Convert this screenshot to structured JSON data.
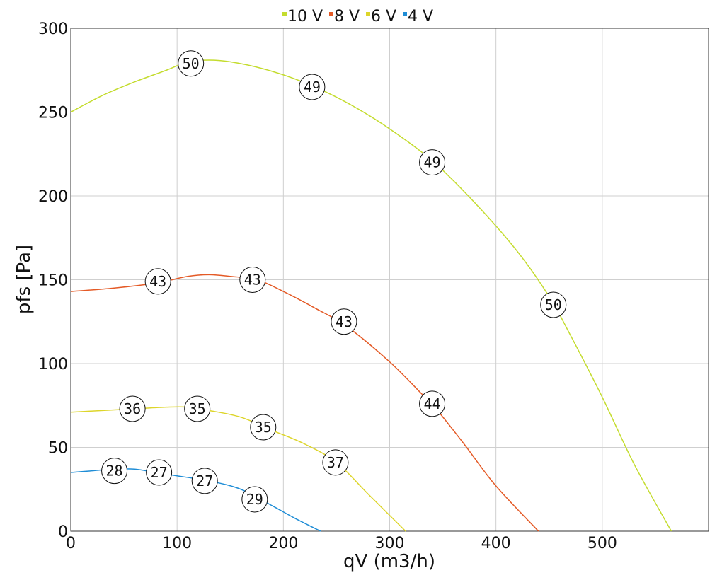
{
  "chart_data": {
    "type": "line",
    "title": "",
    "xlabel": "qV (m3/h)",
    "ylabel": "pfs [Pa]",
    "xlim": [
      0,
      600
    ],
    "ylim": [
      0,
      300
    ],
    "xticks": [
      0,
      100,
      200,
      300,
      400,
      500
    ],
    "yticks": [
      0,
      50,
      100,
      150,
      200,
      250,
      300
    ],
    "grid": true,
    "legend_position": "top-center",
    "series": [
      {
        "name": "10 V",
        "color": "#c4dc2e",
        "x": [
          0,
          30,
          60,
          90,
          110,
          130,
          150,
          180,
          210,
          240,
          270,
          300,
          340,
          380,
          420,
          450,
          470,
          500,
          530,
          565
        ],
        "y": [
          250,
          260,
          268,
          275,
          280,
          281,
          280,
          276,
          270,
          262,
          252,
          240,
          221,
          196,
          167,
          140,
          117,
          80,
          40,
          0
        ],
        "badges": [
          {
            "x": 113,
            "y": 279,
            "label": "50"
          },
          {
            "x": 227,
            "y": 265,
            "label": "49"
          },
          {
            "x": 340,
            "y": 220,
            "label": "49"
          },
          {
            "x": 454,
            "y": 135,
            "label": "50"
          }
        ]
      },
      {
        "name": "8 V",
        "color": "#e45a26",
        "x": [
          0,
          40,
          80,
          110,
          130,
          150,
          175,
          200,
          230,
          260,
          300,
          330,
          345,
          370,
          400,
          440
        ],
        "y": [
          143,
          145,
          148,
          152,
          153,
          152,
          150,
          143,
          133,
          122,
          101,
          82,
          72,
          52,
          27,
          0
        ],
        "badges": [
          {
            "x": 82,
            "y": 149,
            "label": "43"
          },
          {
            "x": 171,
            "y": 150,
            "label": "43"
          },
          {
            "x": 257,
            "y": 125,
            "label": "43"
          },
          {
            "x": 340,
            "y": 76,
            "label": "44"
          }
        ]
      },
      {
        "name": "6 V",
        "color": "#ddd52a",
        "x": [
          0,
          30,
          60,
          90,
          110,
          130,
          160,
          190,
          220,
          250,
          280,
          315
        ],
        "y": [
          71,
          72,
          73,
          74,
          74,
          72,
          68,
          60,
          52,
          41,
          22,
          0
        ],
        "badges": [
          {
            "x": 58,
            "y": 73,
            "label": "36"
          },
          {
            "x": 119,
            "y": 73,
            "label": "35"
          },
          {
            "x": 181,
            "y": 62,
            "label": "35"
          },
          {
            "x": 249,
            "y": 41,
            "label": "37"
          }
        ]
      },
      {
        "name": "4 V",
        "color": "#1f8dd6",
        "x": [
          0,
          20,
          40,
          60,
          80,
          100,
          130,
          160,
          190,
          210,
          235
        ],
        "y": [
          35,
          36,
          37,
          37,
          35,
          33,
          30,
          25,
          15,
          8,
          0
        ],
        "badges": [
          {
            "x": 41,
            "y": 36,
            "label": "28"
          },
          {
            "x": 83,
            "y": 35,
            "label": "27"
          },
          {
            "x": 126,
            "y": 30,
            "label": "27"
          },
          {
            "x": 173,
            "y": 19,
            "label": "29"
          }
        ]
      }
    ]
  }
}
